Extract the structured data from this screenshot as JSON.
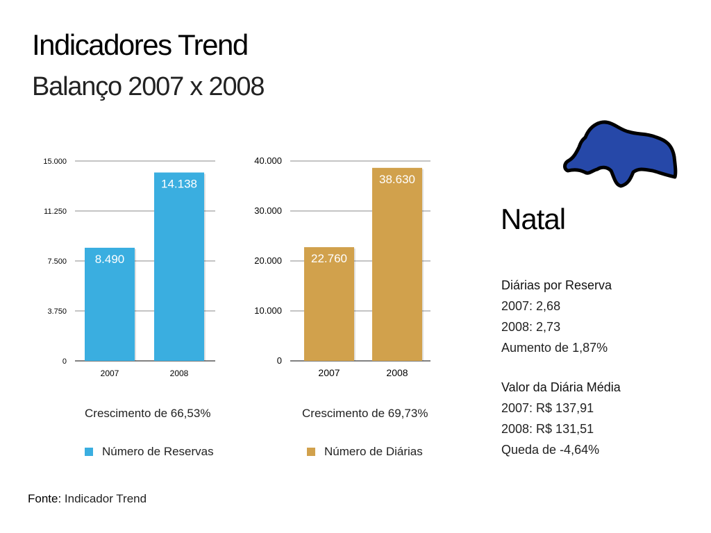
{
  "header": {
    "title": "Indicadores Trend",
    "subtitle": "Balanço 2007 x 2008"
  },
  "chart_data": [
    {
      "type": "bar",
      "categories": [
        "2007",
        "2008"
      ],
      "values": [
        8490,
        14138
      ],
      "data_labels": [
        "8.490",
        "14.138"
      ],
      "yticks": [
        "0",
        "3.750",
        "7.500",
        "11.250",
        "15.000"
      ],
      "ylim": [
        0,
        15000
      ],
      "grid": true,
      "color": "#3aaee0",
      "legend": "Número de Reservas",
      "caption": "Crescimento de 66,53%"
    },
    {
      "type": "bar",
      "categories": [
        "2007",
        "2008"
      ],
      "values": [
        22760,
        38630
      ],
      "data_labels": [
        "22.760",
        "38.630"
      ],
      "yticks": [
        "0",
        "10.000",
        "20.000",
        "30.000",
        "40.000"
      ],
      "ylim": [
        0,
        40000
      ],
      "grid": true,
      "color": "#d1a14c",
      "legend": "Número de Diárias",
      "caption": "Crescimento de 69,73%"
    }
  ],
  "panel": {
    "city": "Natal",
    "map_color": "#2648a8",
    "diarias": {
      "heading": "Diárias por Reserva",
      "line1": "2007: 2,68",
      "line2": "2008: 2,73",
      "line3": "Aumento de 1,87%"
    },
    "valor": {
      "heading": "Valor da Diária Média",
      "line1": "2007: R$ 137,91",
      "line2": "2008: R$ 131,51",
      "line3": "Queda de -4,64%"
    }
  },
  "footer": {
    "label": "Fonte:",
    "text": " Indicador Trend"
  }
}
